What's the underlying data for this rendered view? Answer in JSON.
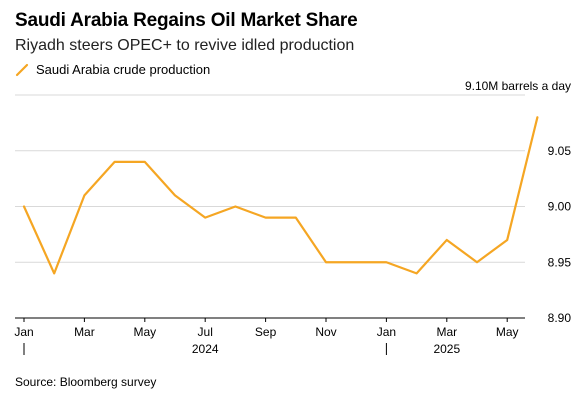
{
  "header": {
    "title": "Saudi Arabia Regains Oil Market Share",
    "subtitle": "Riyadh steers OPEC+ to revive idled production"
  },
  "footer": {
    "source": "Source: Bloomberg survey"
  },
  "colors": {
    "series": "#f5a623",
    "grid": "#d9d9d9",
    "axis": "#000000"
  },
  "chart_data": {
    "type": "line",
    "unit_label": "9.10M barrels a day",
    "x": [
      "2024-01",
      "2024-02",
      "2024-03",
      "2024-04",
      "2024-05",
      "2024-06",
      "2024-07",
      "2024-08",
      "2024-09",
      "2024-10",
      "2024-11",
      "2024-12",
      "2025-01",
      "2025-02",
      "2025-03",
      "2025-04",
      "2025-05",
      "2025-06"
    ],
    "series": [
      {
        "name": "Saudi Arabia crude production",
        "values": [
          9.0,
          8.94,
          9.01,
          9.04,
          9.04,
          9.01,
          8.99,
          9.0,
          8.99,
          8.99,
          8.95,
          8.95,
          8.95,
          8.94,
          8.97,
          8.95,
          8.97,
          9.08
        ]
      }
    ],
    "ylim": [
      8.9,
      9.1
    ],
    "yticks": [
      {
        "value": 8.9,
        "label": "8.90"
      },
      {
        "value": 8.95,
        "label": "8.95"
      },
      {
        "value": 9.0,
        "label": "9.00"
      },
      {
        "value": 9.05,
        "label": "9.05"
      }
    ],
    "xticks": [
      {
        "index": 0,
        "label": "Jan"
      },
      {
        "index": 2,
        "label": "Mar"
      },
      {
        "index": 4,
        "label": "May"
      },
      {
        "index": 6,
        "label": "Jul"
      },
      {
        "index": 8,
        "label": "Sep"
      },
      {
        "index": 10,
        "label": "Nov"
      },
      {
        "index": 12,
        "label": "Jan"
      },
      {
        "index": 14,
        "label": "Mar"
      },
      {
        "index": 16,
        "label": "May"
      }
    ],
    "year_labels": [
      {
        "index": 6,
        "label": "2024"
      },
      {
        "index": 14,
        "label": "2025"
      }
    ],
    "year_dividers": [
      0,
      12
    ],
    "grid": true,
    "legend_position": "top-left"
  }
}
